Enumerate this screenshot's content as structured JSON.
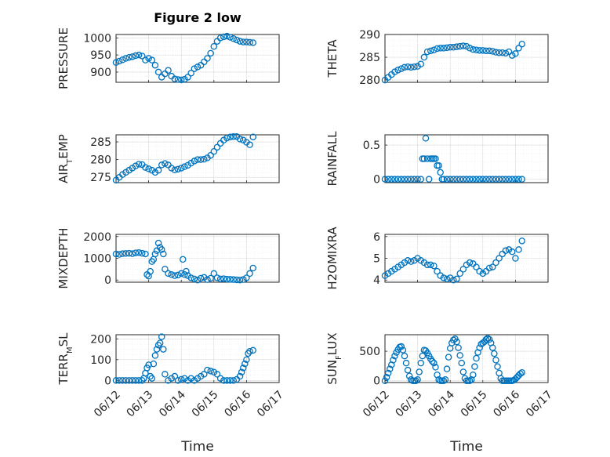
{
  "figure": {
    "title": "Figure 2 low",
    "xlabel": "Time",
    "marker_color": "#0072BD"
  },
  "chart_data": [
    {
      "type": "scatter",
      "ylabel_parts": [
        "PRESSURE"
      ],
      "x_ticks": [
        "06/12",
        "06/13",
        "06/14",
        "06/15",
        "06/16",
        "06/17"
      ],
      "xlim": [
        0,
        5
      ],
      "ylim": [
        870,
        1010
      ],
      "y_ticks": [
        900,
        950,
        1000
      ],
      "x": [
        0,
        0.1,
        0.2,
        0.3,
        0.4,
        0.5,
        0.6,
        0.7,
        0.8,
        0.9,
        1.0,
        1.1,
        1.2,
        1.3,
        1.4,
        1.5,
        1.6,
        1.7,
        1.8,
        1.9,
        2.0,
        2.1,
        2.2,
        2.3,
        2.4,
        2.5,
        2.6,
        2.7,
        2.8,
        2.9,
        3.0,
        3.1,
        3.2,
        3.3,
        3.4,
        3.5,
        3.6,
        3.7,
        3.8,
        3.9,
        4.0,
        4.1,
        4.2
      ],
      "y": [
        928,
        932,
        936,
        940,
        943,
        945,
        948,
        950,
        947,
        935,
        940,
        935,
        920,
        900,
        885,
        895,
        905,
        888,
        880,
        878,
        877,
        879,
        885,
        897,
        910,
        915,
        920,
        930,
        940,
        955,
        975,
        990,
        1000,
        1003,
        1005,
        1002,
        998,
        994,
        990,
        988,
        988,
        987,
        986
      ]
    },
    {
      "type": "scatter",
      "ylabel_parts": [
        "THETA"
      ],
      "x_ticks": [
        "06/12",
        "06/13",
        "06/14",
        "06/15",
        "06/16",
        "06/17"
      ],
      "xlim": [
        0,
        5
      ],
      "ylim": [
        279.5,
        290
      ],
      "y_ticks": [
        280,
        285,
        290
      ],
      "x": [
        0,
        0.1,
        0.2,
        0.3,
        0.4,
        0.5,
        0.6,
        0.7,
        0.8,
        0.9,
        1.0,
        1.1,
        1.2,
        1.3,
        1.4,
        1.5,
        1.6,
        1.7,
        1.8,
        1.9,
        2.0,
        2.1,
        2.2,
        2.3,
        2.4,
        2.5,
        2.6,
        2.7,
        2.8,
        2.9,
        3.0,
        3.1,
        3.2,
        3.3,
        3.4,
        3.5,
        3.6,
        3.7,
        3.8,
        3.9,
        4.0,
        4.1,
        4.2
      ],
      "y": [
        280,
        280.6,
        281.2,
        281.8,
        282.2,
        282.5,
        282.8,
        282.9,
        282.8,
        282.9,
        283,
        283.5,
        285,
        286.2,
        286.4,
        286.6,
        286.9,
        287,
        287,
        287.1,
        287.2,
        287.2,
        287.3,
        287.4,
        287.5,
        287.4,
        287,
        286.7,
        286.6,
        286.5,
        286.5,
        286.4,
        286.4,
        286.3,
        286.1,
        286,
        286,
        285.9,
        286.2,
        285.4,
        285.8,
        287,
        287.9
      ]
    },
    {
      "type": "scatter",
      "ylabel_parts": [
        "AIR",
        "T",
        "EMP"
      ],
      "x_ticks": [
        "06/12",
        "06/13",
        "06/14",
        "06/15",
        "06/16",
        "06/17"
      ],
      "xlim": [
        0,
        5
      ],
      "ylim": [
        273.5,
        287
      ],
      "y_ticks": [
        275,
        280,
        285
      ],
      "x": [
        0,
        0.1,
        0.2,
        0.3,
        0.4,
        0.5,
        0.6,
        0.7,
        0.8,
        0.9,
        1.0,
        1.1,
        1.2,
        1.3,
        1.4,
        1.5,
        1.6,
        1.7,
        1.8,
        1.9,
        2.0,
        2.1,
        2.2,
        2.3,
        2.4,
        2.5,
        2.6,
        2.7,
        2.8,
        2.9,
        3.0,
        3.1,
        3.2,
        3.3,
        3.4,
        3.5,
        3.6,
        3.7,
        3.8,
        3.9,
        4.0,
        4.1,
        4.2
      ],
      "y": [
        274.2,
        275,
        275.8,
        276.4,
        277,
        277.6,
        278.2,
        278.7,
        278.6,
        277.8,
        277.4,
        277,
        276.4,
        277,
        278.5,
        278.9,
        278.5,
        277.6,
        277.1,
        277.3,
        277.6,
        278,
        278.4,
        279,
        279.6,
        280,
        280,
        280.1,
        280.5,
        281.2,
        282.3,
        283.5,
        284.6,
        285.5,
        286.1,
        286.4,
        286.5,
        286.5,
        285.8,
        285.5,
        284.9,
        284.2,
        286.4
      ]
    },
    {
      "type": "scatter",
      "ylabel_parts": [
        "RAINFALL"
      ],
      "x_ticks": [
        "06/12",
        "06/13",
        "06/14",
        "06/15",
        "06/16",
        "06/17"
      ],
      "xlim": [
        0,
        5
      ],
      "ylim": [
        -0.05,
        0.65
      ],
      "y_ticks": [
        0,
        0.5
      ],
      "x": [
        0,
        0.1,
        0.2,
        0.3,
        0.4,
        0.5,
        0.6,
        0.7,
        0.8,
        0.9,
        1.0,
        1.1,
        1.15,
        1.2,
        1.25,
        1.3,
        1.35,
        1.4,
        1.45,
        1.5,
        1.55,
        1.6,
        1.65,
        1.7,
        1.75,
        1.8,
        1.9,
        2.0,
        2.1,
        2.2,
        2.3,
        2.4,
        2.5,
        2.6,
        2.7,
        2.8,
        2.9,
        3.0,
        3.1,
        3.2,
        3.3,
        3.4,
        3.5,
        3.6,
        3.7,
        3.8,
        3.9,
        4.0,
        4.1,
        4.2
      ],
      "y": [
        0,
        0,
        0,
        0,
        0,
        0,
        0,
        0,
        0,
        0,
        0,
        0,
        0.3,
        0.3,
        0.6,
        0.3,
        0,
        0.3,
        0.3,
        0.3,
        0.3,
        0.2,
        0.2,
        0.1,
        0,
        0,
        0,
        0,
        0,
        0,
        0,
        0,
        0,
        0,
        0,
        0,
        0,
        0,
        0,
        0,
        0,
        0,
        0,
        0,
        0,
        0,
        0,
        0,
        0,
        0
      ]
    },
    {
      "type": "scatter",
      "ylabel_parts": [
        "MIXDEPTH"
      ],
      "x_ticks": [
        "06/12",
        "06/13",
        "06/14",
        "06/15",
        "06/16",
        "06/17"
      ],
      "xlim": [
        0,
        5
      ],
      "ylim": [
        -100,
        2100
      ],
      "y_ticks": [
        0,
        1000,
        2000
      ],
      "x": [
        0,
        0.1,
        0.2,
        0.3,
        0.4,
        0.5,
        0.6,
        0.7,
        0.8,
        0.9,
        0.95,
        1.0,
        1.05,
        1.1,
        1.15,
        1.2,
        1.25,
        1.3,
        1.35,
        1.4,
        1.45,
        1.5,
        1.6,
        1.7,
        1.8,
        1.9,
        2.0,
        2.05,
        2.1,
        2.15,
        2.2,
        2.3,
        2.4,
        2.5,
        2.6,
        2.7,
        2.8,
        2.9,
        3.0,
        3.1,
        3.2,
        3.3,
        3.4,
        3.5,
        3.6,
        3.7,
        3.8,
        3.9,
        4.0,
        4.1,
        4.2
      ],
      "y": [
        1200,
        1180,
        1210,
        1220,
        1230,
        1210,
        1250,
        1260,
        1230,
        1200,
        250,
        180,
        400,
        850,
        950,
        1200,
        1350,
        1700,
        1500,
        1400,
        1200,
        500,
        300,
        250,
        200,
        230,
        300,
        950,
        250,
        400,
        200,
        100,
        50,
        0,
        80,
        120,
        20,
        80,
        300,
        100,
        50,
        60,
        40,
        30,
        20,
        10,
        0,
        20,
        100,
        300,
        550
      ]
    },
    {
      "type": "scatter",
      "ylabel_parts": [
        "H2OMIXRA"
      ],
      "x_ticks": [
        "06/12",
        "06/13",
        "06/14",
        "06/15",
        "06/16",
        "06/17"
      ],
      "xlim": [
        0,
        5
      ],
      "ylim": [
        3.9,
        6.1
      ],
      "y_ticks": [
        4,
        5,
        6
      ],
      "x": [
        0,
        0.1,
        0.2,
        0.3,
        0.4,
        0.5,
        0.6,
        0.7,
        0.8,
        0.9,
        1.0,
        1.1,
        1.2,
        1.3,
        1.4,
        1.5,
        1.6,
        1.7,
        1.8,
        1.9,
        2.0,
        2.1,
        2.2,
        2.3,
        2.4,
        2.5,
        2.6,
        2.7,
        2.8,
        2.9,
        3.0,
        3.1,
        3.2,
        3.3,
        3.4,
        3.5,
        3.6,
        3.7,
        3.8,
        3.9,
        4.0,
        4.1,
        4.2
      ],
      "y": [
        4.2,
        4.3,
        4.4,
        4.5,
        4.6,
        4.7,
        4.8,
        4.9,
        4.85,
        4.9,
        5.0,
        4.9,
        4.8,
        4.7,
        4.7,
        4.65,
        4.4,
        4.2,
        4.1,
        4.05,
        4.1,
        4.0,
        4.05,
        4.3,
        4.5,
        4.7,
        4.8,
        4.75,
        4.6,
        4.4,
        4.3,
        4.4,
        4.55,
        4.6,
        4.8,
        5.0,
        5.2,
        5.35,
        5.4,
        5.3,
        5.0,
        5.4,
        5.8
      ]
    },
    {
      "type": "scatter",
      "ylabel_parts": [
        "TERR",
        "M",
        "SL"
      ],
      "x_ticks": [
        "06/12",
        "06/13",
        "06/14",
        "06/15",
        "06/16",
        "06/17"
      ],
      "xlim": [
        0,
        5
      ],
      "ylim": [
        -10,
        220
      ],
      "y_ticks": [
        0,
        100,
        200
      ],
      "x": [
        0,
        0.1,
        0.2,
        0.3,
        0.4,
        0.5,
        0.6,
        0.7,
        0.8,
        0.85,
        0.9,
        0.95,
        1.0,
        1.05,
        1.1,
        1.15,
        1.2,
        1.25,
        1.3,
        1.35,
        1.4,
        1.45,
        1.5,
        1.6,
        1.7,
        1.8,
        1.9,
        2.0,
        2.1,
        2.2,
        2.3,
        2.4,
        2.5,
        2.6,
        2.7,
        2.8,
        2.9,
        3.0,
        3.1,
        3.2,
        3.3,
        3.4,
        3.5,
        3.6,
        3.7,
        3.8,
        3.85,
        3.9,
        3.95,
        4.0,
        4.05,
        4.1,
        4.2
      ],
      "y": [
        0,
        0,
        0,
        0,
        0,
        0,
        0,
        0,
        0,
        10,
        35,
        60,
        75,
        20,
        10,
        80,
        120,
        150,
        170,
        180,
        210,
        150,
        30,
        0,
        10,
        20,
        0,
        5,
        10,
        0,
        10,
        0,
        10,
        20,
        30,
        50,
        45,
        40,
        30,
        10,
        0,
        0,
        0,
        0,
        5,
        20,
        40,
        60,
        80,
        100,
        130,
        140,
        145
      ]
    },
    {
      "type": "scatter",
      "ylabel_parts": [
        "SUN",
        "F",
        "LUX"
      ],
      "x_ticks": [
        "06/12",
        "06/13",
        "06/14",
        "06/15",
        "06/16",
        "06/17"
      ],
      "xlim": [
        0,
        5
      ],
      "ylim": [
        -30,
        780
      ],
      "y_ticks": [
        0,
        500
      ],
      "x": [
        0,
        0.05,
        0.1,
        0.15,
        0.2,
        0.25,
        0.3,
        0.35,
        0.4,
        0.45,
        0.5,
        0.55,
        0.6,
        0.65,
        0.7,
        0.75,
        0.8,
        0.85,
        0.9,
        0.95,
        1.0,
        1.05,
        1.1,
        1.15,
        1.2,
        1.25,
        1.3,
        1.35,
        1.4,
        1.45,
        1.5,
        1.55,
        1.6,
        1.65,
        1.7,
        1.75,
        1.8,
        1.85,
        1.9,
        1.95,
        2.0,
        2.05,
        2.1,
        2.15,
        2.2,
        2.25,
        2.3,
        2.35,
        2.4,
        2.45,
        2.5,
        2.55,
        2.6,
        2.65,
        2.7,
        2.75,
        2.8,
        2.85,
        2.9,
        2.95,
        3.0,
        3.05,
        3.1,
        3.15,
        3.2,
        3.25,
        3.3,
        3.35,
        3.4,
        3.45,
        3.5,
        3.55,
        3.6,
        3.65,
        3.7,
        3.75,
        3.8,
        3.85,
        3.9,
        3.95,
        4.0,
        4.05,
        4.1,
        4.15,
        4.2
      ],
      "y": [
        0,
        60,
        130,
        200,
        270,
        350,
        420,
        480,
        530,
        570,
        580,
        520,
        420,
        300,
        180,
        80,
        20,
        0,
        0,
        0,
        20,
        150,
        300,
        420,
        520,
        510,
        470,
        420,
        370,
        330,
        300,
        230,
        100,
        20,
        0,
        0,
        0,
        20,
        200,
        400,
        550,
        640,
        690,
        710,
        660,
        560,
        430,
        300,
        150,
        40,
        0,
        0,
        0,
        20,
        100,
        240,
        380,
        480,
        560,
        620,
        640,
        660,
        700,
        720,
        700,
        640,
        560,
        460,
        350,
        240,
        130,
        40,
        0,
        0,
        0,
        0,
        0,
        0,
        0,
        10,
        30,
        60,
        90,
        120,
        140
      ]
    }
  ]
}
